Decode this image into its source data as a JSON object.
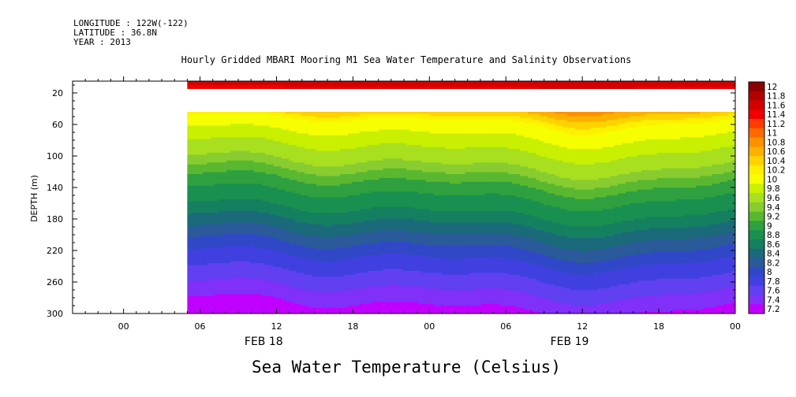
{
  "header": {
    "longitude": "LONGITUDE : 122W(-122)",
    "latitude": "LATITUDE : 36.8N",
    "year": "YEAR : 2013"
  },
  "chart_data": {
    "type": "heatmap",
    "title": "Hourly Gridded MBARI Mooring M1 Sea Water Temperature and Salinity Observations",
    "variable_title": "Sea Water Temperature (Celsius)",
    "ylabel": "DEPTH (m)",
    "xlabel": "",
    "x_range_hours": [
      -4,
      48
    ],
    "x_ticks": [
      {
        "h": 0,
        "label": "00"
      },
      {
        "h": 6,
        "label": "06"
      },
      {
        "h": 12,
        "label": "12"
      },
      {
        "h": 18,
        "label": "18"
      },
      {
        "h": 24,
        "label": "00"
      },
      {
        "h": 30,
        "label": "06"
      },
      {
        "h": 36,
        "label": "12"
      },
      {
        "h": 42,
        "label": "18"
      },
      {
        "h": 48,
        "label": "00"
      }
    ],
    "date_labels": [
      {
        "h": 11,
        "label": "FEB 18"
      },
      {
        "h": 35,
        "label": "FEB 19"
      }
    ],
    "ylim": [
      5,
      300
    ],
    "y_inverted": true,
    "y_ticks": [
      20,
      60,
      100,
      140,
      180,
      220,
      260,
      300
    ],
    "data_start_hour": 5,
    "no_data_depth_band": [
      12,
      40
    ],
    "colorbar": {
      "levels": [
        "12",
        "11.8",
        "11.6",
        "11.4",
        "11.2",
        "11",
        "10.8",
        "10.6",
        "10.4",
        "10.2",
        "10",
        "9.8",
        "9.6",
        "9.4",
        "9.2",
        "9",
        "8.8",
        "8.6",
        "8.4",
        "8.2",
        "8",
        "7.8",
        "7.6",
        "7.4",
        "7.2"
      ],
      "colors": [
        "#8c0000",
        "#b00000",
        "#d40000",
        "#f00000",
        "#ff3c00",
        "#ff6a00",
        "#ff9000",
        "#ffb000",
        "#ffd200",
        "#fff000",
        "#f5ff00",
        "#c8f000",
        "#a8e020",
        "#88cc30",
        "#5ab830",
        "#2ea040",
        "#1a9050",
        "#148060",
        "#1a6a7a",
        "#2a5a9a",
        "#3048c8",
        "#4040e0",
        "#6040f0",
        "#8030f8",
        "#c000ff"
      ]
    },
    "temperature_profile": [
      {
        "depth": 5,
        "temp": 11.7
      },
      {
        "depth": 12,
        "temp": 11.6
      },
      {
        "depth": 40,
        "temp": 10.7
      },
      {
        "depth": 55,
        "temp": 10.2
      },
      {
        "depth": 80,
        "temp": 9.9
      },
      {
        "depth": 110,
        "temp": 9.6
      },
      {
        "depth": 140,
        "temp": 9.1
      },
      {
        "depth": 170,
        "temp": 8.8
      },
      {
        "depth": 200,
        "temp": 8.4
      },
      {
        "depth": 230,
        "temp": 8.0
      },
      {
        "depth": 260,
        "temp": 7.7
      },
      {
        "depth": 300,
        "temp": 7.3
      }
    ]
  }
}
